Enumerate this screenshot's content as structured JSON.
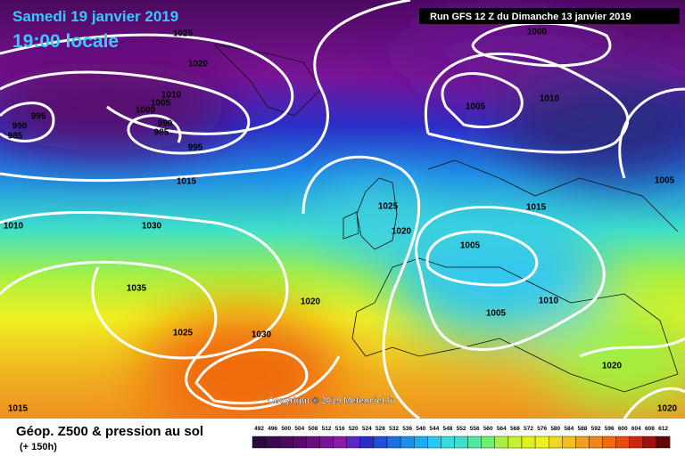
{
  "header": {
    "date": "Samedi 19 janvier 2019",
    "time": "19:00 locale",
    "run": "Run GFS 12 Z du Dimanche 13 janvier 2019",
    "copyright": "Copyright © 2019 Meteociel.fr"
  },
  "footer": {
    "title": "Géop. Z500 & pression au sol",
    "lead": "(+ 150h)"
  },
  "scale_labels": [
    "492",
    "496",
    "500",
    "504",
    "508",
    "512",
    "516",
    "520",
    "524",
    "528",
    "532",
    "536",
    "540",
    "544",
    "548",
    "552",
    "556",
    "560",
    "564",
    "568",
    "572",
    "576",
    "580",
    "584",
    "588",
    "592",
    "596",
    "600",
    "604",
    "608",
    "612"
  ],
  "isobar_labels": [
    "1025",
    "1020",
    "1010",
    "1005",
    "1000",
    "995",
    "990",
    "985",
    "990",
    "985",
    "995",
    "1015",
    "1010",
    "1030",
    "1035",
    "1025",
    "1030",
    "1020",
    "1015",
    "1000",
    "1005",
    "1010",
    "1005",
    "1015",
    "1025",
    "1020",
    "1005",
    "1005",
    "1010",
    "1020",
    "1020"
  ]
}
